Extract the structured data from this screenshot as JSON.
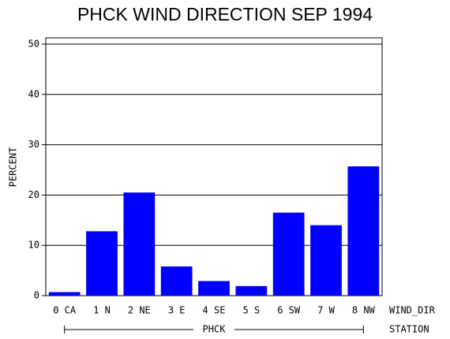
{
  "chart_data": {
    "type": "bar",
    "title": "PHCK WIND DIRECTION SEP 1994",
    "categories": [
      "0 CA",
      "1 N",
      "2 NE",
      "3 E",
      "4 SE",
      "5 S",
      "6 SW",
      "7 W",
      "8 NW"
    ],
    "values": [
      0.7,
      12.8,
      20.5,
      5.8,
      2.9,
      1.9,
      16.5,
      14.0,
      25.7
    ],
    "color": "#0000ff",
    "ylim": [
      0,
      51.25
    ],
    "yticks": [
      0,
      10,
      20,
      30,
      40,
      50
    ],
    "grid": true,
    "y_label": "PERCENT",
    "x_label": "WIND_DIR",
    "group_label": "PHCK",
    "group_axis_label": "STATION"
  }
}
